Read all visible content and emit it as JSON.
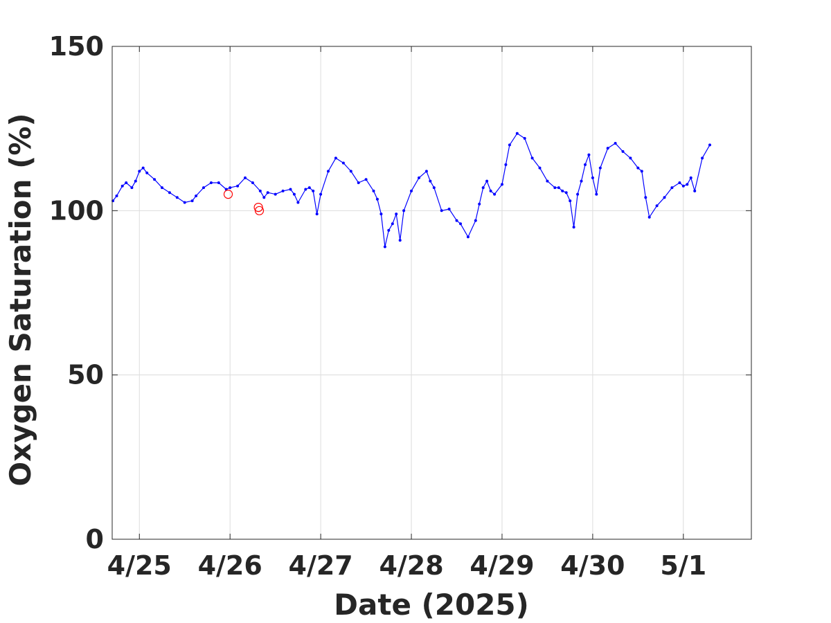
{
  "chart_data": {
    "type": "line",
    "title": "",
    "xlabel": "Date (2025)",
    "ylabel": "Oxygen Saturation (%)",
    "ylim": [
      0,
      150
    ],
    "xlim": [
      "2025-04-24 16:48",
      "2025-05-01 18:00"
    ],
    "yticks": [
      0,
      50,
      100,
      150
    ],
    "xticks": [
      {
        "date": "2025-04-25",
        "label": "4/25"
      },
      {
        "date": "2025-04-26",
        "label": "4/26"
      },
      {
        "date": "2025-04-27",
        "label": "4/27"
      },
      {
        "date": "2025-04-28",
        "label": "4/28"
      },
      {
        "date": "2025-04-29",
        "label": "4/29"
      },
      {
        "date": "2025-04-30",
        "label": "4/30"
      },
      {
        "date": "2025-05-01",
        "label": "5/1"
      }
    ],
    "grid": true,
    "series": [
      {
        "color": "#0000ff",
        "style": "line-with-markers",
        "x": [
          "2025-04-24 17:00",
          "2025-04-24 18:00",
          "2025-04-24 19:30",
          "2025-04-24 20:30",
          "2025-04-24 22:00",
          "2025-04-24 23:00",
          "2025-04-25 00:00",
          "2025-04-25 01:00",
          "2025-04-25 02:00",
          "2025-04-25 04:00",
          "2025-04-25 06:00",
          "2025-04-25 08:00",
          "2025-04-25 10:00",
          "2025-04-25 12:00",
          "2025-04-25 14:00",
          "2025-04-25 15:00",
          "2025-04-25 17:00",
          "2025-04-25 19:00",
          "2025-04-25 21:00",
          "2025-04-25 23:00",
          "2025-04-26 00:00",
          "2025-04-26 02:00",
          "2025-04-26 04:00",
          "2025-04-26 06:00",
          "2025-04-26 08:00",
          "2025-04-26 09:00",
          "2025-04-26 10:00",
          "2025-04-26 12:00",
          "2025-04-26 14:00",
          "2025-04-26 16:00",
          "2025-04-26 17:00",
          "2025-04-26 18:00",
          "2025-04-26 20:00",
          "2025-04-26 21:00",
          "2025-04-26 22:00",
          "2025-04-26 23:00",
          "2025-04-27 00:00",
          "2025-04-27 02:00",
          "2025-04-27 04:00",
          "2025-04-27 06:00",
          "2025-04-27 08:00",
          "2025-04-27 10:00",
          "2025-04-27 12:00",
          "2025-04-27 14:00",
          "2025-04-27 15:00",
          "2025-04-27 16:00",
          "2025-04-27 17:00",
          "2025-04-27 18:00",
          "2025-04-27 19:00",
          "2025-04-27 20:00",
          "2025-04-27 21:00",
          "2025-04-27 22:00",
          "2025-04-28 00:00",
          "2025-04-28 02:00",
          "2025-04-28 04:00",
          "2025-04-28 05:00",
          "2025-04-28 06:00",
          "2025-04-28 08:00",
          "2025-04-28 10:00",
          "2025-04-28 12:00",
          "2025-04-28 13:00",
          "2025-04-28 15:00",
          "2025-04-28 17:00",
          "2025-04-28 18:00",
          "2025-04-28 19:00",
          "2025-04-28 20:00",
          "2025-04-28 21:00",
          "2025-04-28 22:00",
          "2025-04-29 00:00",
          "2025-04-29 01:00",
          "2025-04-29 02:00",
          "2025-04-29 04:00",
          "2025-04-29 06:00",
          "2025-04-29 08:00",
          "2025-04-29 10:00",
          "2025-04-29 12:00",
          "2025-04-29 14:00",
          "2025-04-29 15:00",
          "2025-04-29 16:00",
          "2025-04-29 17:00",
          "2025-04-29 18:00",
          "2025-04-29 19:00",
          "2025-04-29 20:00",
          "2025-04-29 21:00",
          "2025-04-29 22:00",
          "2025-04-29 23:00",
          "2025-04-30 00:00",
          "2025-04-30 01:00",
          "2025-04-30 02:00",
          "2025-04-30 04:00",
          "2025-04-30 06:00",
          "2025-04-30 08:00",
          "2025-04-30 10:00",
          "2025-04-30 12:00",
          "2025-04-30 13:00",
          "2025-04-30 14:00",
          "2025-04-30 15:00",
          "2025-04-30 17:00",
          "2025-04-30 19:00",
          "2025-04-30 21:00",
          "2025-04-30 23:00",
          "2025-05-01 00:00",
          "2025-05-01 01:00",
          "2025-05-01 02:00",
          "2025-05-01 03:00",
          "2025-05-01 05:00",
          "2025-05-01 07:00"
        ],
        "y": [
          103,
          104.5,
          107.5,
          108.5,
          107,
          109,
          112,
          113,
          111.5,
          109.5,
          107,
          105.5,
          104,
          102.5,
          103,
          104.5,
          107,
          108.5,
          108.5,
          106.5,
          107,
          107.5,
          110,
          108.5,
          106,
          104,
          105.5,
          105,
          106,
          106.5,
          105,
          102.5,
          106.5,
          107,
          106,
          99,
          105,
          112,
          116,
          114.5,
          112,
          108.5,
          109.5,
          106,
          103.5,
          99,
          89,
          94,
          96,
          99,
          91,
          100,
          106,
          110,
          112,
          109,
          107,
          100,
          100.5,
          97,
          96,
          92,
          97,
          102,
          107,
          109,
          106,
          105,
          108,
          114,
          120,
          123.5,
          122,
          116,
          113,
          109,
          107,
          107,
          106,
          105.5,
          103,
          95,
          105,
          109,
          114,
          117,
          110,
          105,
          113,
          119,
          120.5,
          118,
          116,
          113,
          112,
          104,
          98,
          101.5,
          104,
          107,
          108.5,
          107.5,
          108,
          110,
          106,
          116,
          120
        ]
      }
    ],
    "outliers": {
      "color": "#ff0000",
      "marker": "open-circle",
      "x": [
        "2025-04-25 23:30",
        "2025-04-26 07:30",
        "2025-04-26 07:45"
      ],
      "y": [
        105,
        101,
        100
      ]
    }
  }
}
